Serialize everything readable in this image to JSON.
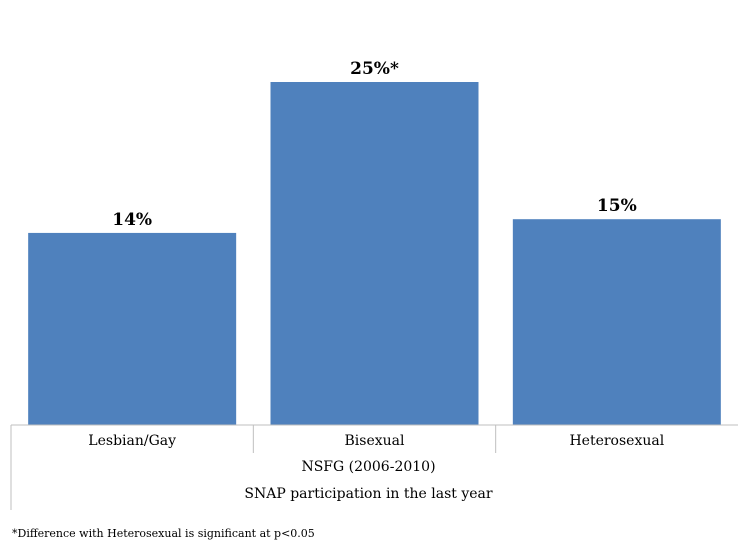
{
  "chart_data": {
    "type": "bar",
    "categories": [
      "Lesbian/Gay",
      "Bisexual",
      "Heterosexual"
    ],
    "values": [
      14,
      25,
      15
    ],
    "data_labels": [
      "14%",
      "25%*",
      "15%"
    ],
    "group_labels": [
      "NSFG (2006-2010)",
      "SNAP participation in the last year"
    ],
    "ylim": [
      0,
      30
    ],
    "grid": false,
    "bar_color": "#4F81BD"
  },
  "footnote": "*Difference with Heterosexual is significant at p<0.05"
}
